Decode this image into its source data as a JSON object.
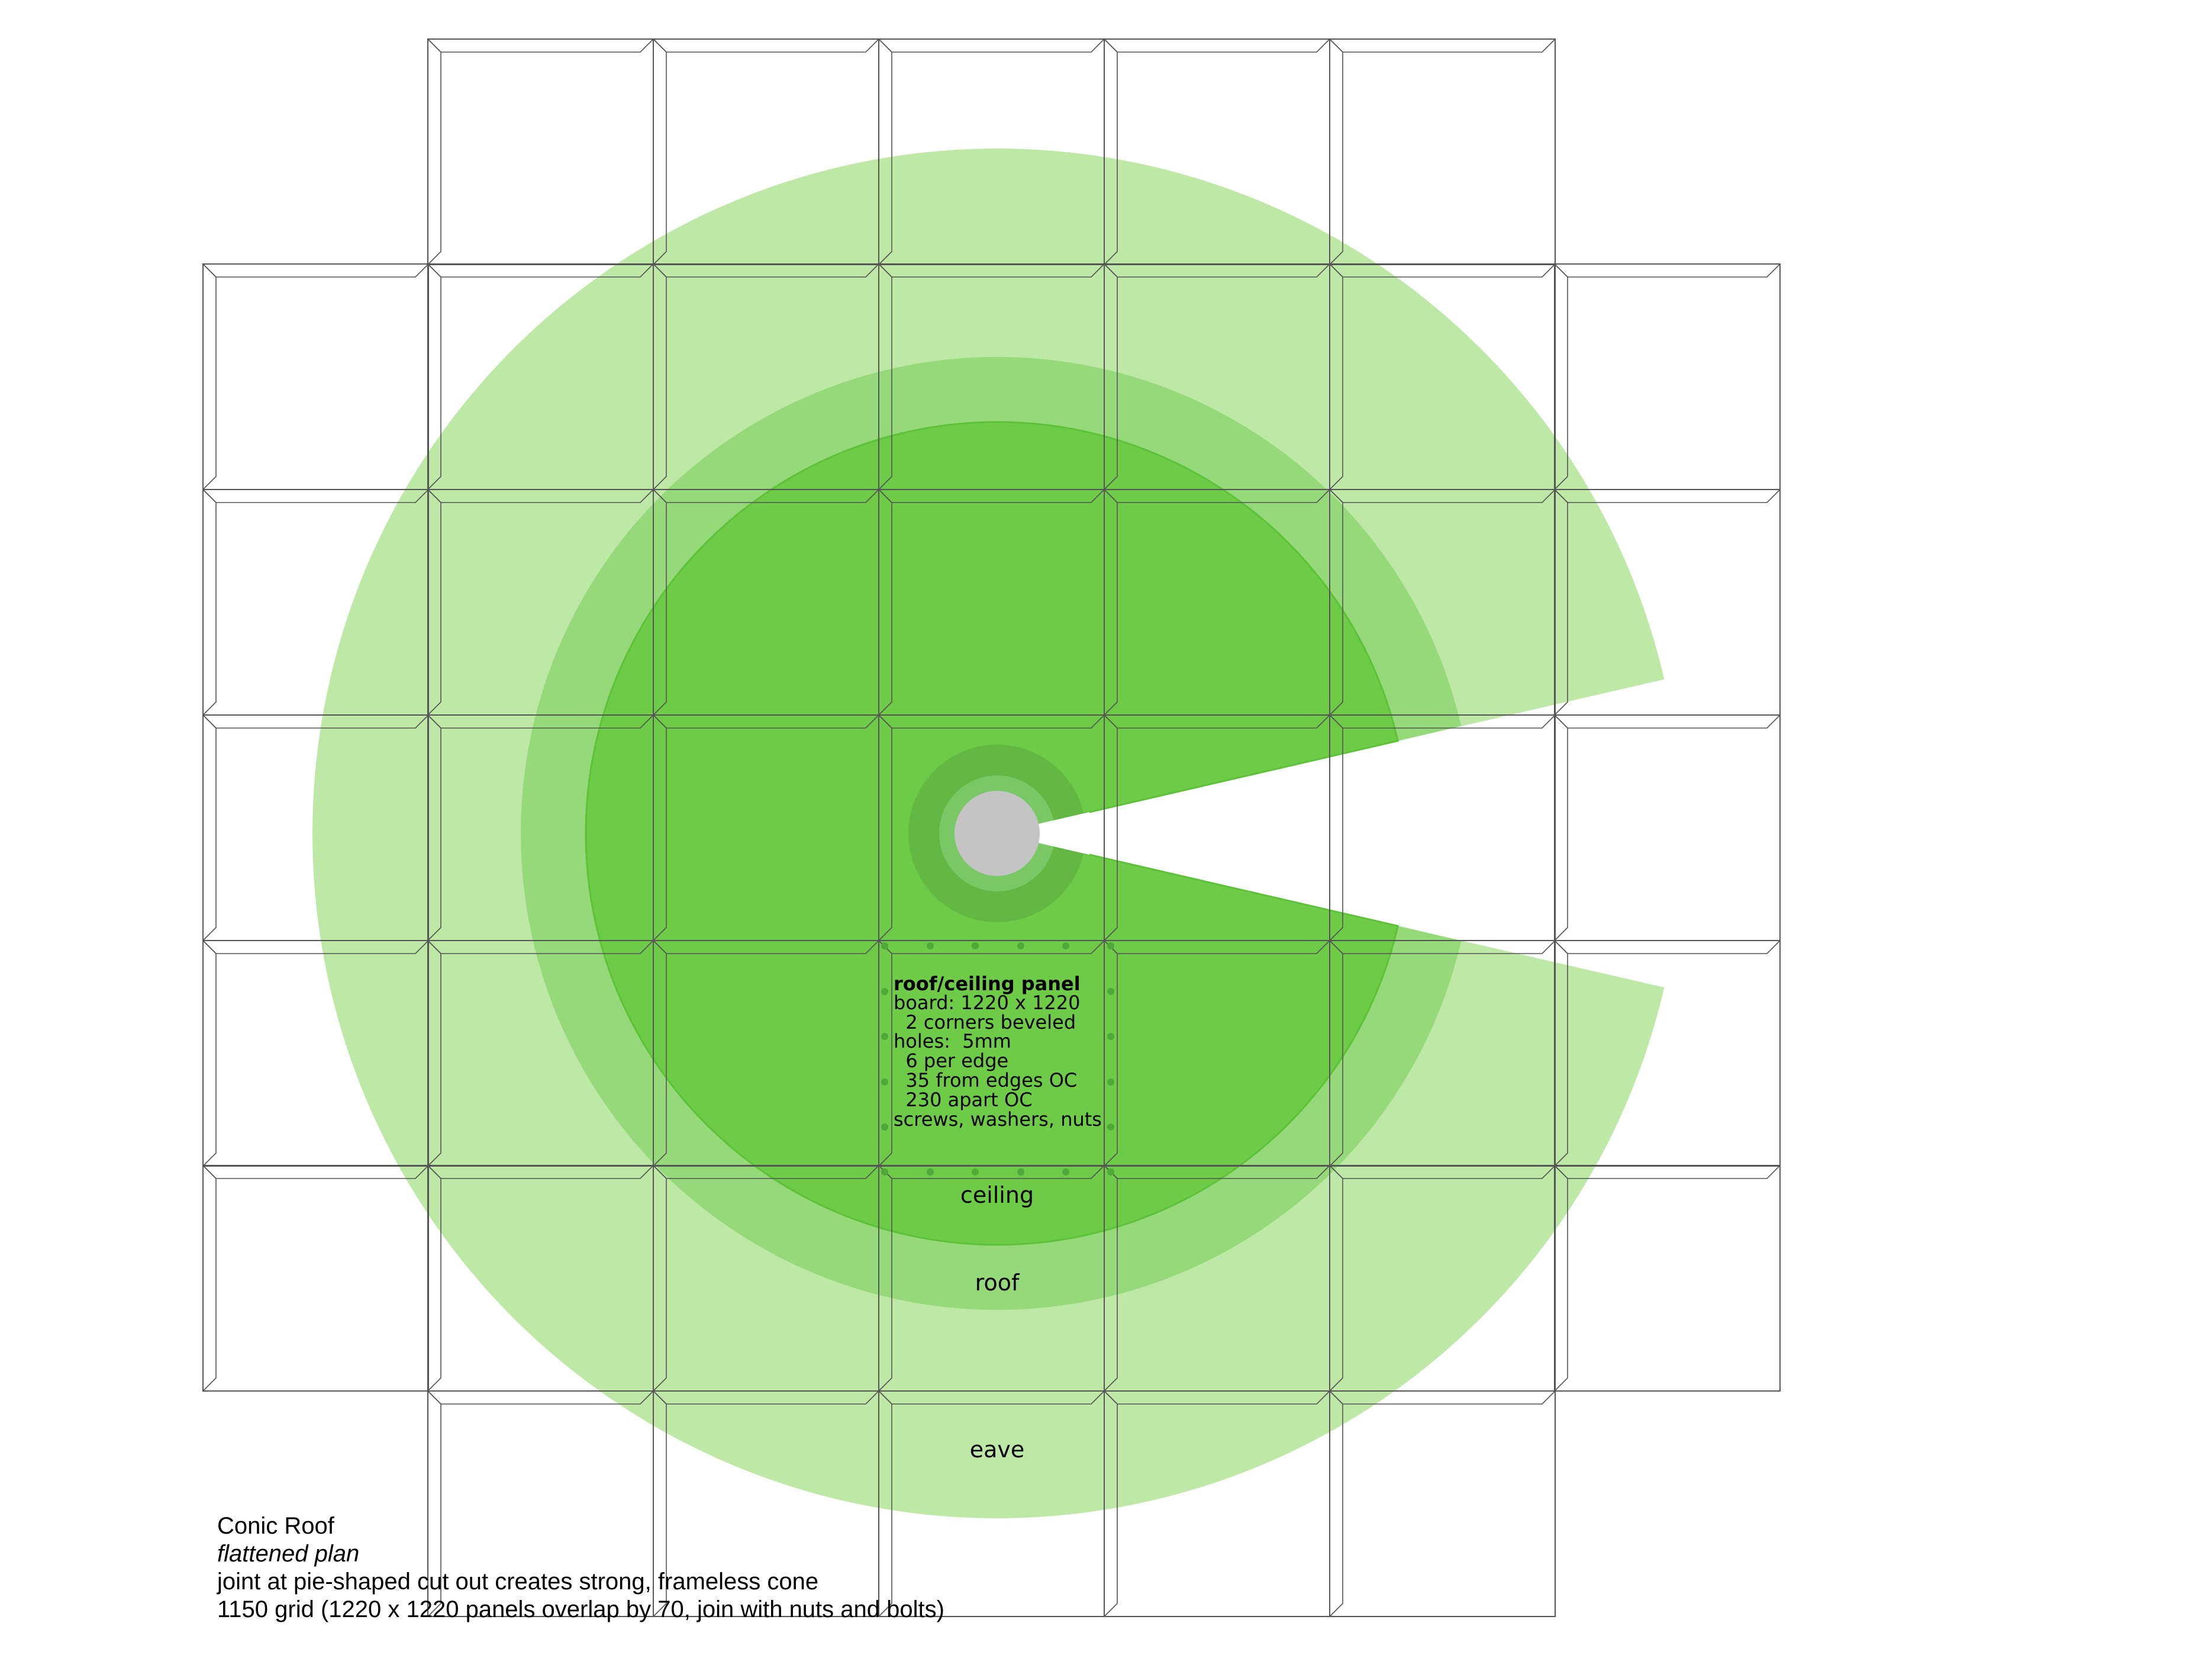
{
  "colors": {
    "eave": "#bde8a6",
    "roof": "#96d97a",
    "ceiling": "#6dcb47",
    "ceiling_edge": "#5cc238",
    "hub_ring": "#62b843",
    "hub_inner_ring": "#7ac765",
    "hub": "#c4c4c4",
    "hole": "#4fa83a",
    "grid_line": "#555555"
  },
  "labels": {
    "ceiling": "ceiling",
    "roof": "roof",
    "eave": "eave"
  },
  "panel_note": {
    "title": "roof/ceiling panel",
    "lines": [
      "board: 1220 x 1220",
      "  2 corners beveled",
      "holes:  5mm",
      "  6 per edge",
      "  35 from edges OC",
      "  230 apart OC",
      "screws, washers, nuts"
    ]
  },
  "caption": {
    "title": "Conic Roof",
    "subtitle": "flattened plan",
    "line1": "joint at pie-shaped cut out creates strong, frameless cone",
    "line2": "1150 grid (1220 x 1220 panels overlap by 70, join with nuts and bolts)"
  }
}
